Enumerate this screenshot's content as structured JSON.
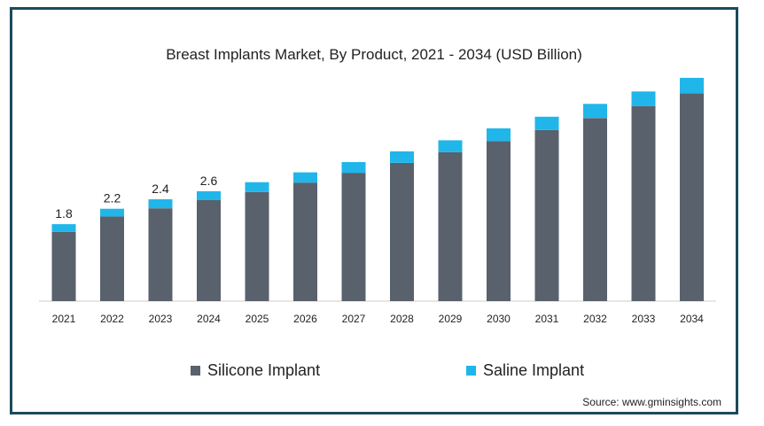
{
  "chart_data": {
    "type": "bar",
    "stacked": true,
    "title": "Breast Implants Market, By Product, 2021 - 2034 (USD Billion)",
    "xlabel": "",
    "ylabel": "",
    "categories": [
      "2021",
      "2022",
      "2023",
      "2024",
      "2025",
      "2026",
      "2027",
      "2028",
      "2029",
      "2030",
      "2031",
      "2032",
      "2033",
      "2034"
    ],
    "series": [
      {
        "name": "Silicone Implant",
        "color": "#58616c",
        "values": [
          1.62,
          1.98,
          2.17,
          2.36,
          2.55,
          2.77,
          3.0,
          3.23,
          3.48,
          3.74,
          4.0,
          4.28,
          4.56,
          4.86
        ]
      },
      {
        "name": "Saline Implant",
        "color": "#20b6ea",
        "values": [
          0.18,
          0.18,
          0.21,
          0.21,
          0.23,
          0.24,
          0.25,
          0.27,
          0.28,
          0.3,
          0.31,
          0.33,
          0.34,
          0.36
        ]
      }
    ],
    "data_labels": [
      "1.8",
      "2.2",
      "2.4",
      "2.6"
    ],
    "ylim": [
      0,
      5.3
    ],
    "grid": false,
    "legend_position": "bottom"
  },
  "source": "Source: www.gminsights.com"
}
